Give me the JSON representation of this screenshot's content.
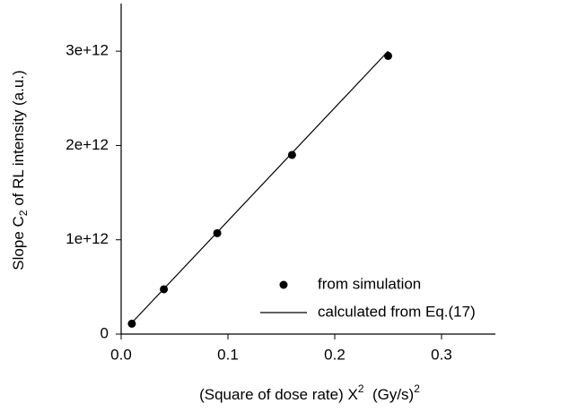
{
  "chart_data": {
    "type": "scatter",
    "xlabel": [
      "(Square of dose rate) X",
      "2",
      "  (Gy/s)",
      "2"
    ],
    "ylabel": [
      "Slope C",
      "2",
      " of RL intensity (a.u.)"
    ],
    "xlim": [
      0,
      0.35
    ],
    "ylim": [
      0,
      3500000000000
    ],
    "xticks": [
      {
        "value": 0,
        "label": "0.0"
      },
      0.1,
      0.2,
      0.3
    ],
    "yticks": [
      0,
      {
        "value": 1000000000000,
        "label": "1e+12"
      },
      {
        "value": 2000000000000,
        "label": "2e+12"
      },
      {
        "value": 3000000000000,
        "label": "3e+12"
      }
    ],
    "legend": "lower right",
    "series": [
      {
        "name": "from simulation",
        "type": "scatter",
        "color": "#000000",
        "x": [
          0.01,
          0.04,
          0.09,
          0.16,
          0.25
        ],
        "values": [
          110000000000,
          475000000000,
          1070000000000,
          1900000000000,
          2950000000000
        ]
      },
      {
        "name": "calculated from Eq.(17)",
        "type": "line",
        "color": "#000000",
        "x": [
          0.01,
          0.25
        ],
        "values": [
          120000000000,
          3000000000000
        ]
      }
    ]
  }
}
